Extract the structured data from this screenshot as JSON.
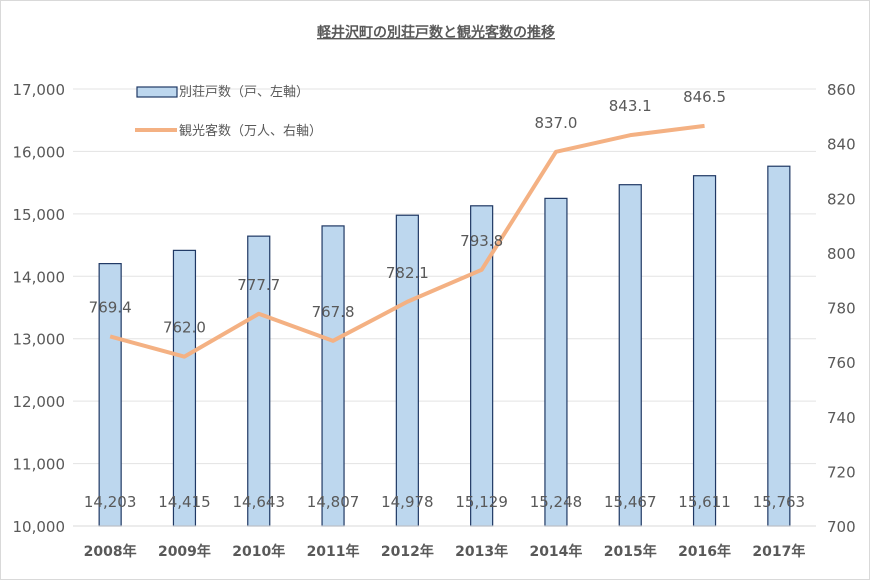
{
  "chart_data": {
    "type": "bar+line",
    "title": "軽井沢町の別荘戸数と観光客数の推移",
    "categories": [
      "2008年",
      "2009年",
      "2010年",
      "2011年",
      "2012年",
      "2013年",
      "2014年",
      "2015年",
      "2016年",
      "2017年"
    ],
    "series": [
      {
        "name": "別荘戸数（戸、左軸）",
        "type": "bar",
        "axis": "left",
        "values": [
          14203,
          14415,
          14643,
          14807,
          14978,
          15129,
          15248,
          15467,
          15611,
          15763
        ],
        "labels": [
          "14,203",
          "14,415",
          "14,643",
          "14,807",
          "14,978",
          "15,129",
          "15,248",
          "15,467",
          "15,611",
          "15,763"
        ],
        "color": "#bdd7ee",
        "border": "#1f3864"
      },
      {
        "name": "観光客数（万人、右軸）",
        "type": "line",
        "axis": "right",
        "values": [
          769.4,
          762.0,
          777.7,
          767.8,
          782.1,
          793.8,
          837.0,
          843.1,
          846.5,
          null
        ],
        "labels": [
          "769.4",
          "762.0",
          "777.7",
          "767.8",
          "782.1",
          "793.8",
          "837.0",
          "843.1",
          "846.5",
          ""
        ],
        "color": "#f4b183"
      }
    ],
    "y_left": {
      "range": [
        10000,
        17000
      ],
      "ticks": [
        "10,000",
        "11,000",
        "12,000",
        "13,000",
        "14,000",
        "15,000",
        "16,000",
        "17,000"
      ]
    },
    "y_right": {
      "range": [
        700,
        860
      ],
      "ticks": [
        "700",
        "720",
        "740",
        "760",
        "780",
        "800",
        "820",
        "840",
        "860"
      ]
    },
    "legend": "top-left",
    "grid": true
  }
}
